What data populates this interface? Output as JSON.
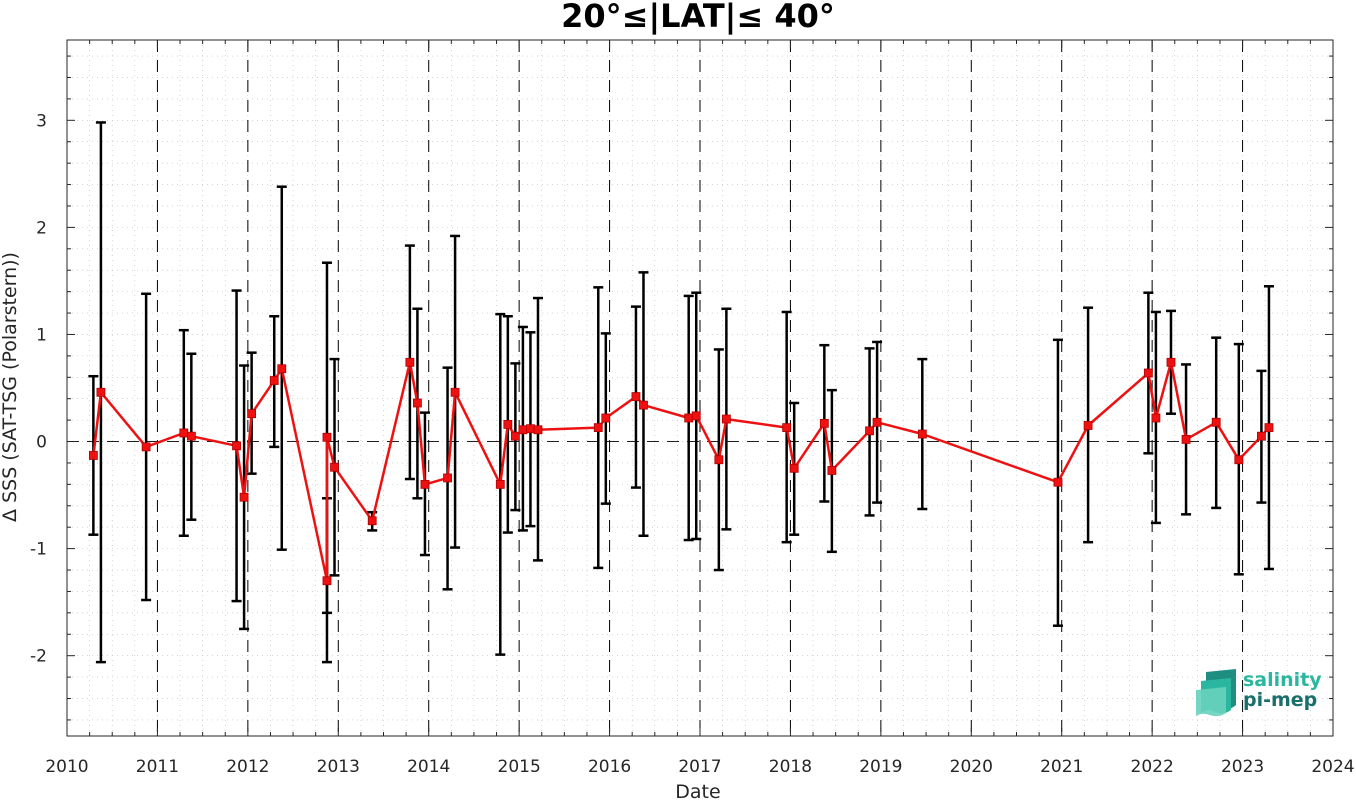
{
  "chart_data": {
    "type": "line",
    "title": "20°≤|LAT|≤ 40°",
    "xlabel": "Date",
    "ylabel": "Δ SSS (SAT-TSG (Polarstern))",
    "xlim": [
      2010,
      2024
    ],
    "ylim": [
      -2.75,
      3.75
    ],
    "xticks": [
      "2010",
      "2011",
      "2012",
      "2013",
      "2014",
      "2015",
      "2016",
      "2017",
      "2018",
      "2019",
      "2020",
      "2021",
      "2022",
      "2023",
      "2024"
    ],
    "yticks": [
      "-2",
      "-1",
      "0",
      "1",
      "2",
      "3"
    ],
    "grid": true,
    "zero_line": true,
    "year_dividers": true,
    "colors": {
      "series": "#ee1111",
      "errorbars": "#000000",
      "grid": "#bbbbbb"
    },
    "series": [
      {
        "name": "",
        "points": [
          {
            "x": "2010-04",
            "y": -0.13,
            "low": -0.87,
            "high": 0.61
          },
          {
            "x": "2010-05",
            "y": 0.46,
            "low": -2.06,
            "high": 2.98
          },
          {
            "x": "2010-11",
            "y": -0.05,
            "low": -1.48,
            "high": 1.38
          },
          {
            "x": "2011-04",
            "y": 0.08,
            "low": -0.88,
            "high": 1.04
          },
          {
            "x": "2011-05",
            "y": 0.05,
            "low": -0.73,
            "high": 0.82
          },
          {
            "x": "2011-11",
            "y": -0.04,
            "low": -1.49,
            "high": 1.41
          },
          {
            "x": "2011-12",
            "y": -0.52,
            "low": -1.75,
            "high": 0.71
          },
          {
            "x": "2012-01",
            "y": 0.26,
            "low": -0.3,
            "high": 0.83
          },
          {
            "x": "2012-04",
            "y": 0.57,
            "low": -0.05,
            "high": 1.17
          },
          {
            "x": "2012-05",
            "y": 0.68,
            "low": -1.01,
            "high": 2.38
          },
          {
            "x": "2012-11",
            "y": -1.3,
            "low": -2.06,
            "high": -0.53
          },
          {
            "x": "2012-11",
            "y": 0.04,
            "low": -1.6,
            "high": 1.67
          },
          {
            "x": "2012-12",
            "y": -0.24,
            "low": -1.25,
            "high": 0.77
          },
          {
            "x": "2013-05",
            "y": -0.74,
            "low": -0.83,
            "high": -0.66
          },
          {
            "x": "2013-10",
            "y": 0.74,
            "low": -0.35,
            "high": 1.83
          },
          {
            "x": "2013-11",
            "y": 0.36,
            "low": -0.53,
            "high": 1.24
          },
          {
            "x": "2013-12",
            "y": -0.4,
            "low": -1.06,
            "high": 0.27
          },
          {
            "x": "2014-03",
            "y": -0.34,
            "low": -1.38,
            "high": 0.69
          },
          {
            "x": "2014-04",
            "y": 0.46,
            "low": -0.99,
            "high": 1.92
          },
          {
            "x": "2014-10",
            "y": -0.4,
            "low": -1.99,
            "high": 1.19
          },
          {
            "x": "2014-11",
            "y": 0.16,
            "low": -0.85,
            "high": 1.17
          },
          {
            "x": "2014-12",
            "y": 0.05,
            "low": -0.64,
            "high": 0.73
          },
          {
            "x": "2015-01",
            "y": 0.11,
            "low": -0.83,
            "high": 1.07
          },
          {
            "x": "2015-02",
            "y": 0.12,
            "low": -0.79,
            "high": 1.02
          },
          {
            "x": "2015-03",
            "y": 0.11,
            "low": -1.11,
            "high": 1.34
          },
          {
            "x": "2015-11",
            "y": 0.13,
            "low": -1.18,
            "high": 1.44
          },
          {
            "x": "2015-12",
            "y": 0.22,
            "low": -0.58,
            "high": 1.01
          },
          {
            "x": "2016-04",
            "y": 0.42,
            "low": -0.43,
            "high": 1.26
          },
          {
            "x": "2016-05",
            "y": 0.34,
            "low": -0.88,
            "high": 1.58
          },
          {
            "x": "2016-11",
            "y": 0.22,
            "low": -0.92,
            "high": 1.36
          },
          {
            "x": "2016-12",
            "y": 0.24,
            "low": -0.91,
            "high": 1.39
          },
          {
            "x": "2017-03",
            "y": -0.17,
            "low": -1.2,
            "high": 0.86
          },
          {
            "x": "2017-04",
            "y": 0.21,
            "low": -0.82,
            "high": 1.24
          },
          {
            "x": "2017-12",
            "y": 0.13,
            "low": -0.94,
            "high": 1.21
          },
          {
            "x": "2018-01",
            "y": -0.25,
            "low": -0.87,
            "high": 0.36
          },
          {
            "x": "2018-05",
            "y": 0.17,
            "low": -0.56,
            "high": 0.9
          },
          {
            "x": "2018-06",
            "y": -0.27,
            "low": -1.03,
            "high": 0.48
          },
          {
            "x": "2018-11",
            "y": 0.1,
            "low": -0.69,
            "high": 0.87
          },
          {
            "x": "2018-12",
            "y": 0.18,
            "low": -0.57,
            "high": 0.93
          },
          {
            "x": "2019-06",
            "y": 0.07,
            "low": -0.63,
            "high": 0.77
          },
          {
            "x": "2020-12",
            "y": -0.38,
            "low": -1.72,
            "high": 0.95
          },
          {
            "x": "2021-04",
            "y": 0.15,
            "low": -0.94,
            "high": 1.25
          },
          {
            "x": "2021-12",
            "y": 0.64,
            "low": -0.11,
            "high": 1.39
          },
          {
            "x": "2022-01",
            "y": 0.22,
            "low": -0.76,
            "high": 1.21
          },
          {
            "x": "2022-03",
            "y": 0.74,
            "low": 0.26,
            "high": 1.22
          },
          {
            "x": "2022-05",
            "y": 0.02,
            "low": -0.68,
            "high": 0.72
          },
          {
            "x": "2022-09",
            "y": 0.18,
            "low": -0.62,
            "high": 0.97
          },
          {
            "x": "2022-12",
            "y": -0.17,
            "low": -1.24,
            "high": 0.91
          },
          {
            "x": "2023-03",
            "y": 0.05,
            "low": -0.57,
            "high": 0.66
          },
          {
            "x": "2023-04",
            "y": 0.13,
            "low": -1.19,
            "high": 1.45
          }
        ]
      }
    ]
  },
  "logo": {
    "line1": "salinity",
    "line2": "pi-mep",
    "color1": "#2bb6a0",
    "color2": "#1a6f6a"
  }
}
